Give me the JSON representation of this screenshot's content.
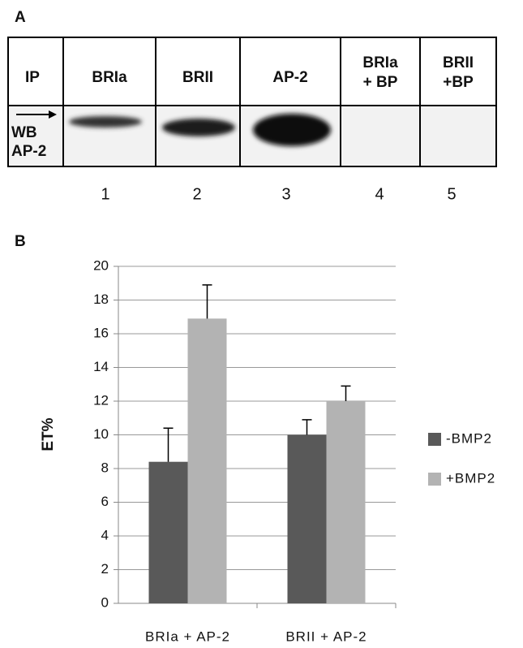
{
  "panel_a": {
    "label": "A",
    "headers": [
      [
        "IP"
      ],
      [
        "BRIa"
      ],
      [
        "BRII"
      ],
      [
        "AP-2"
      ],
      [
        "BRIa",
        "+ BP"
      ],
      [
        "BRII",
        "+BP"
      ]
    ],
    "row_label": [
      "WB",
      "AP-2"
    ],
    "lanes": [
      1,
      2,
      3,
      4,
      5
    ]
  },
  "chart_data": {
    "type": "bar",
    "panel_label": "B",
    "ylabel": "ET%",
    "categories": [
      "BRIa + AP-2",
      "BRII + AP-2"
    ],
    "series": [
      {
        "name": "-BMP2",
        "color": "#595959",
        "values": [
          8.4,
          10
        ],
        "errors": [
          2,
          0.9
        ]
      },
      {
        "name": "+BMP2",
        "color": "#b3b3b3",
        "values": [
          16.9,
          12
        ],
        "errors": [
          2,
          0.9
        ]
      }
    ],
    "ylim": [
      0,
      20
    ],
    "yticks": [
      0,
      2,
      4,
      6,
      8,
      10,
      12,
      14,
      16,
      18,
      20
    ],
    "grid": true,
    "legend": "right"
  }
}
